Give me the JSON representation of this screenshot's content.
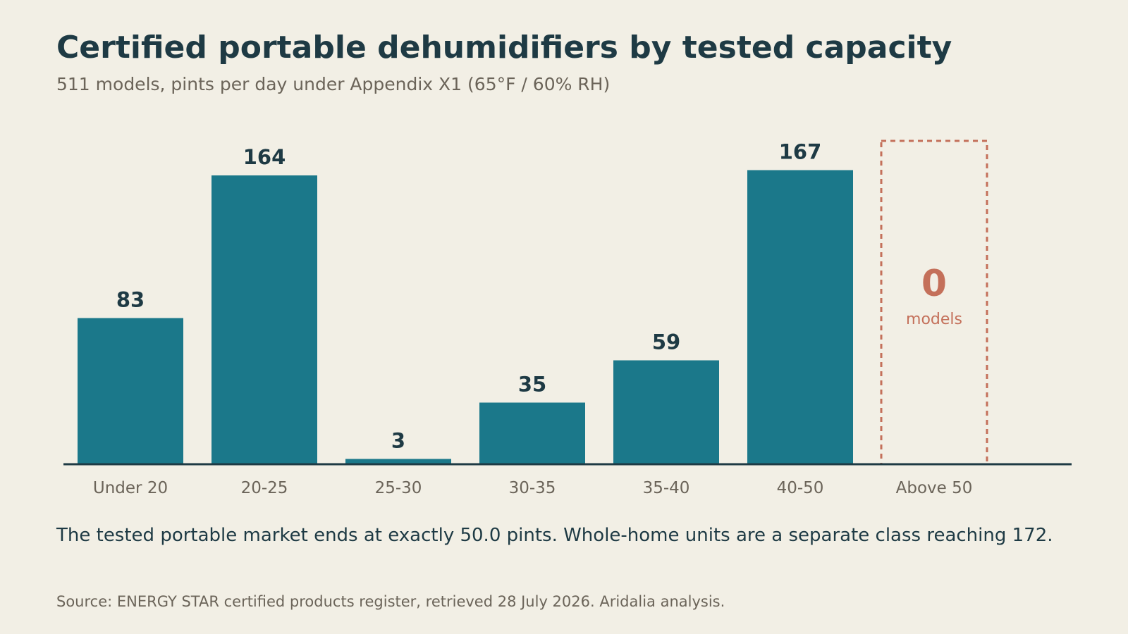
{
  "chart_data": {
    "type": "bar",
    "title": "Certified portable dehumidifiers by tested capacity",
    "subtitle": "511 models, pints per day under Appendix X1 (65°F / 60% RH)",
    "categories": [
      "Under 20",
      "20-25",
      "25-30",
      "30-35",
      "35-40",
      "40-50",
      "Above 50"
    ],
    "values": [
      83,
      164,
      3,
      35,
      59,
      167,
      0
    ],
    "value_labels": [
      "83",
      "164",
      "3",
      "35",
      "59",
      "167",
      "0"
    ],
    "empty_bar": {
      "category": "Above 50",
      "value_label": "0",
      "unit_label": "models"
    },
    "xlabel": "",
    "ylabel": "",
    "grid": false,
    "legend": "none",
    "colors": {
      "bar": "#1b788a",
      "highlight": "#c4705a",
      "axis": "#1e3a44",
      "text_dark": "#1e3a44",
      "text_muted": "#6b6459",
      "background": "#f2efe5"
    }
  },
  "note": "The tested portable market ends at exactly 50.0 pints. Whole-home units are a separate class reaching 172.",
  "source": "Source: ENERGY STAR certified products register, retrieved 28 July 2026. Aridalia analysis."
}
